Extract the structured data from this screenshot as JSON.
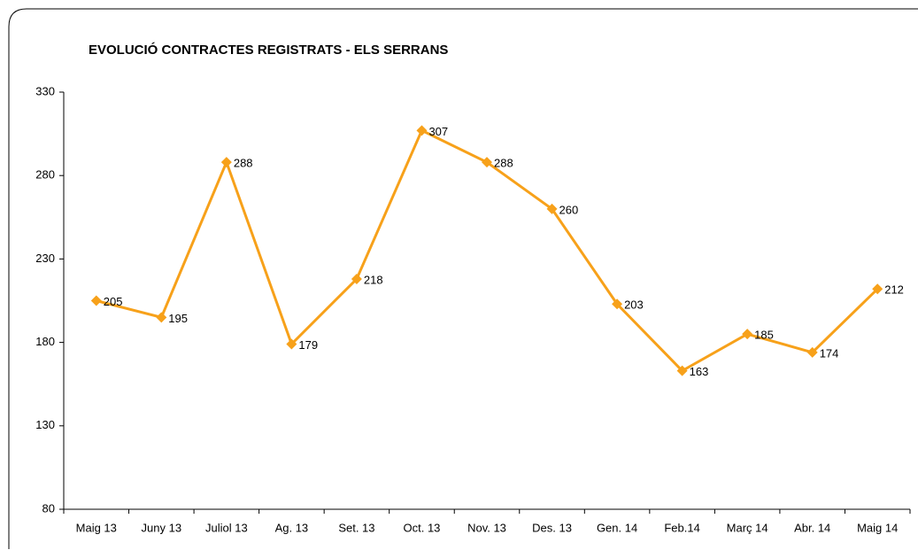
{
  "chart_data": {
    "type": "line",
    "title": "EVOLUCIÓ CONTRACTES REGISTRATS - ELS SERRANS",
    "categories": [
      "Maig 13",
      "Juny 13",
      "Juliol 13",
      "Ag. 13",
      "Set. 13",
      "Oct. 13",
      "Nov. 13",
      "Des. 13",
      "Gen. 14",
      "Feb.14",
      "Març 14",
      "Abr. 14",
      "Maig 14"
    ],
    "values": [
      205,
      195,
      288,
      179,
      218,
      307,
      288,
      260,
      203,
      163,
      185,
      174,
      212
    ],
    "color": "#f7a11a",
    "ylim": [
      80,
      330
    ],
    "yticks": [
      80,
      130,
      180,
      230,
      280,
      330
    ],
    "grid": false
  }
}
